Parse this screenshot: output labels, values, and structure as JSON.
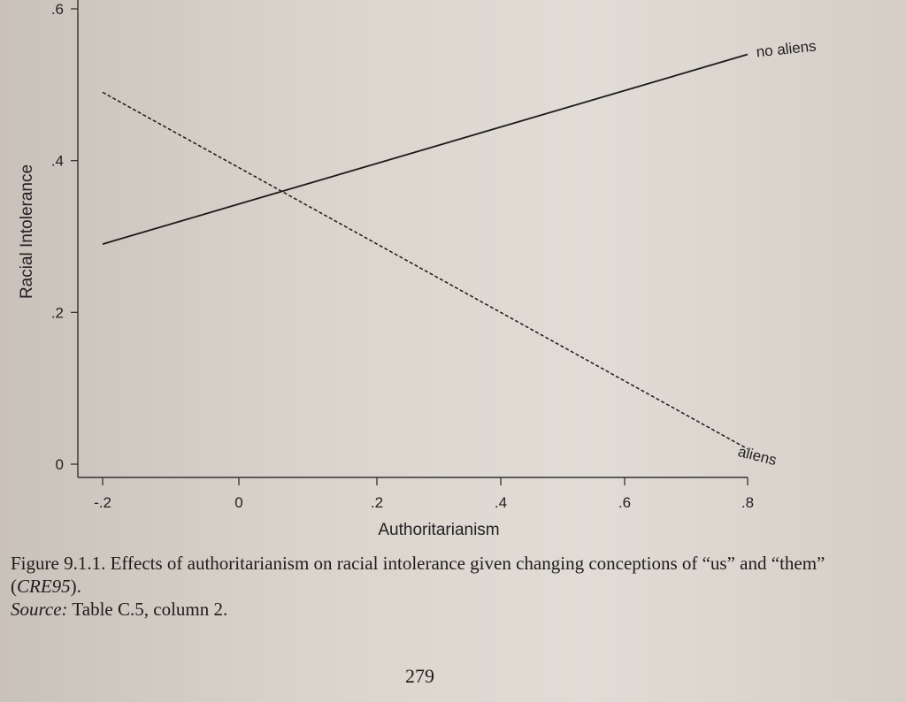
{
  "chart_data": {
    "type": "line",
    "title": "",
    "xlabel": "Authoritarianism",
    "ylabel": "Racial Intolerance",
    "xlim": [
      -0.2,
      0.8
    ],
    "ylim": [
      0,
      0.6
    ],
    "x_ticks": [
      -0.2,
      0,
      0.2,
      0.4,
      0.6,
      0.8
    ],
    "x_tick_labels": [
      "-.2",
      "0",
      ".2",
      ".4",
      ".6",
      ".8"
    ],
    "y_ticks": [
      0,
      0.2,
      0.4,
      0.6
    ],
    "y_tick_labels": [
      "0",
      ".2",
      ".4",
      ".6"
    ],
    "grid": false,
    "series": [
      {
        "name": "no aliens",
        "style": "solid",
        "x": [
          -0.2,
          0.8
        ],
        "y": [
          0.29,
          0.54
        ]
      },
      {
        "name": "aliens",
        "style": "dashed",
        "x": [
          -0.2,
          0.8
        ],
        "y": [
          0.49,
          0.02
        ]
      }
    ]
  },
  "caption": {
    "figure_label": "Figure 9.1.1.",
    "text_before_italic": "Effects of authoritarianism on racial intolerance given changing conceptions of “us” and “them” (",
    "italic": "CRE95",
    "text_after_italic": ").",
    "source_label": "Source:",
    "source_text": "Table C.5, column 2."
  },
  "page_number": "279"
}
